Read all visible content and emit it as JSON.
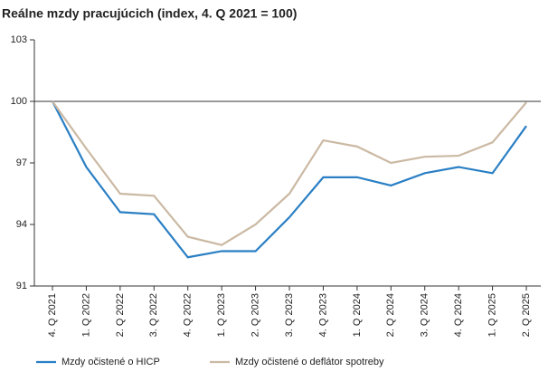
{
  "chart_data": {
    "type": "line",
    "title": "Reálne mzdy pracujúcich (index, 4. Q 2021 = 100)",
    "categories": [
      "4. Q 2021",
      "1. Q 2022",
      "2. Q 2022",
      "3. Q 2022",
      "4. Q 2022",
      "1. Q 2023",
      "2. Q 2023",
      "3. Q 2023",
      "4. Q 2023",
      "1. Q 2024",
      "2. Q 2024",
      "3. Q 2024",
      "4. Q 2024",
      "1. Q 2025",
      "2. Q 2025"
    ],
    "series": [
      {
        "name": "Mzdy očistené o HICP",
        "color": "#2a7fc4",
        "values": [
          100,
          96.8,
          94.6,
          94.5,
          92.4,
          92.7,
          92.7,
          94.35,
          96.3,
          96.3,
          95.9,
          96.5,
          96.8,
          96.5,
          98.8
        ]
      },
      {
        "name": "Mzdy očistené o deflátor spotreby",
        "color": "#cbb9a3",
        "values": [
          100,
          97.7,
          95.5,
          95.4,
          93.4,
          93.0,
          94.0,
          95.5,
          98.1,
          97.8,
          97.0,
          97.3,
          97.35,
          98.0,
          99.95
        ]
      }
    ],
    "ylim": [
      91,
      103
    ],
    "yticks": [
      91,
      94,
      97,
      100,
      103
    ],
    "reference_line": 100,
    "grid": false,
    "legend": "bottom"
  }
}
